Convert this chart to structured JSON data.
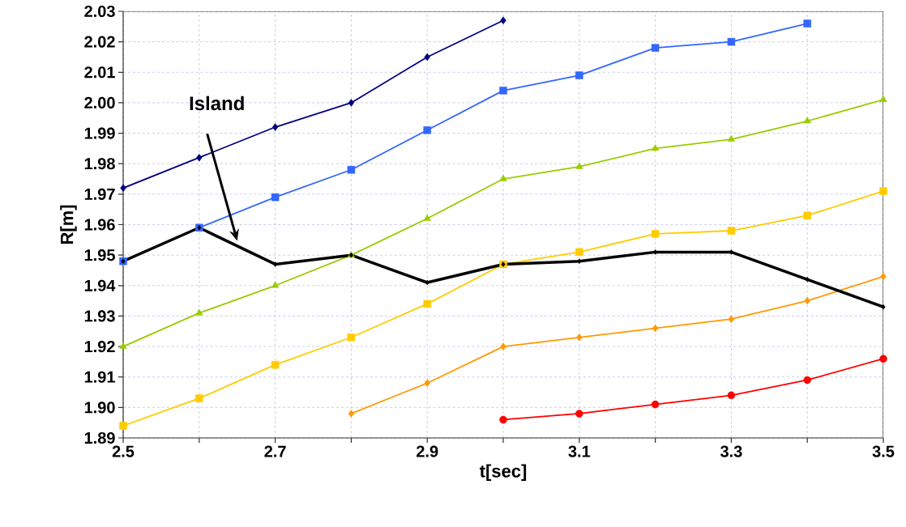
{
  "chart_data": {
    "type": "line",
    "xlabel": "t[sec]",
    "ylabel": "R[m]",
    "x": [
      2.5,
      2.6,
      2.7,
      2.8,
      2.9,
      3.0,
      3.1,
      3.2,
      3.3,
      3.4,
      3.5
    ],
    "series": [
      {
        "color": "#000080",
        "marker": "diamond",
        "values": [
          1.972,
          1.982,
          1.992,
          2.0,
          2.015,
          2.027,
          null,
          null,
          null,
          null,
          null
        ]
      },
      {
        "color": "#3366ff",
        "marker": "square",
        "values": [
          1.948,
          1.959,
          1.969,
          1.978,
          1.991,
          2.004,
          2.009,
          2.018,
          2.02,
          2.026,
          null
        ]
      },
      {
        "color": "#99cc00",
        "marker": "triangle",
        "values": [
          1.92,
          1.931,
          1.94,
          1.95,
          1.962,
          1.975,
          1.979,
          1.985,
          1.988,
          1.994,
          2.001
        ]
      },
      {
        "color": "#ffcc00",
        "marker": "square",
        "values": [
          1.894,
          1.903,
          1.914,
          1.923,
          1.934,
          1.947,
          1.951,
          1.957,
          1.958,
          1.963,
          1.971
        ]
      },
      {
        "color": "#ff9900",
        "marker": "diamond",
        "values": [
          null,
          null,
          null,
          1.898,
          1.908,
          1.92,
          1.923,
          1.926,
          1.929,
          1.935,
          1.943
        ]
      },
      {
        "color": "#ff0000",
        "marker": "circle",
        "values": [
          null,
          null,
          null,
          null,
          null,
          1.896,
          1.898,
          1.901,
          1.904,
          1.909,
          1.916
        ]
      },
      {
        "color": "#000000",
        "marker": "diamond",
        "values": [
          1.948,
          1.959,
          1.947,
          1.95,
          1.941,
          1.947,
          1.948,
          1.951,
          1.951,
          1.942,
          1.933
        ]
      }
    ],
    "xlim": [
      2.5,
      3.5
    ],
    "xticks": [
      2.5,
      {
        "value": 2.6,
        "label": null
      },
      2.7,
      {
        "value": 2.8,
        "label": null
      },
      2.9,
      {
        "value": 3.0,
        "label": null
      },
      3.1,
      {
        "value": 3.2,
        "label": null
      },
      3.3,
      {
        "value": 3.4,
        "label": null
      },
      3.5
    ],
    "ylim": [
      1.89,
      2.03
    ],
    "yticks": [
      1.89,
      {
        "value": 1.9,
        "label": "1.90"
      },
      1.91,
      1.92,
      1.93,
      1.94,
      1.95,
      1.96,
      1.97,
      1.98,
      1.99,
      {
        "value": 2.0,
        "label": "2.00"
      },
      2.01,
      2.02,
      2.03
    ],
    "grid": true,
    "line_style": "solid",
    "annotations": [
      {
        "text": "Island",
        "x": 2.65,
        "y": 1.9547
      }
    ]
  }
}
